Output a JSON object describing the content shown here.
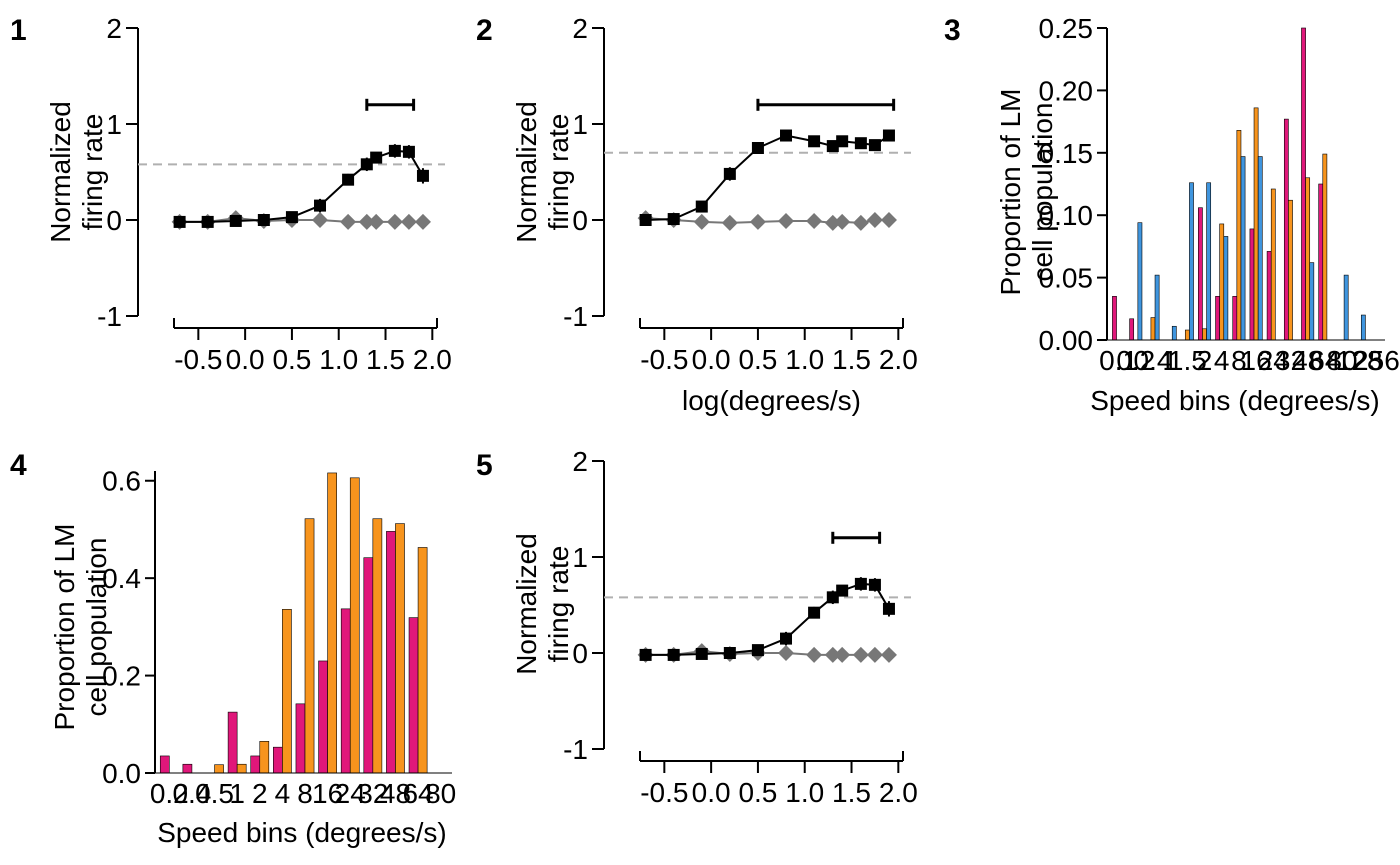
{
  "figure": {
    "background": "#ffffff",
    "colors": {
      "stimulus": "#000000",
      "baseline": "#777777",
      "reference_line": "#b0b0b0",
      "magenta": "#e0177a",
      "orange": "#f7941d",
      "blue": "#3f95de"
    }
  },
  "chart_data": [
    {
      "id": "1",
      "type": "line",
      "panel_label": "1",
      "ylabel": "Normalized firing rate",
      "ylabel_lines": [
        "Normalized",
        "firing rate"
      ],
      "xlabel": "",
      "xlim": [
        -0.76,
        2.05
      ],
      "ylim": [
        -1,
        2
      ],
      "x_ticks": [
        "-0.5",
        "0.0",
        "0.5",
        "1.0",
        "1.5",
        "2.0"
      ],
      "y_ticks": [
        "-1",
        "0",
        "1",
        "2"
      ],
      "grid": false,
      "reference_line_y": 0.58,
      "significance_bar": [
        1.3,
        1.8
      ],
      "series": [
        {
          "marker": "square",
          "color": "#000000",
          "x": [
            -0.7,
            -0.4,
            -0.1,
            0.2,
            0.5,
            0.8,
            1.1,
            1.3,
            1.4,
            1.6,
            1.75,
            1.9
          ],
          "y": [
            -0.02,
            -0.02,
            -0.01,
            0.0,
            0.03,
            0.15,
            0.42,
            0.58,
            0.65,
            0.72,
            0.71,
            0.46
          ],
          "err": [
            0.03,
            0.03,
            0.03,
            0.03,
            0.04,
            0.07,
            0.06,
            0.07,
            0.05,
            0.07,
            0.07,
            0.08
          ]
        },
        {
          "marker": "diamond",
          "color": "#777777",
          "x": [
            -0.7,
            -0.4,
            -0.1,
            0.2,
            0.5,
            0.8,
            1.1,
            1.3,
            1.4,
            1.6,
            1.75,
            1.9
          ],
          "y": [
            -0.02,
            -0.02,
            0.02,
            -0.01,
            0.0,
            0.0,
            -0.02,
            -0.02,
            -0.02,
            -0.02,
            -0.02,
            -0.02
          ],
          "err": [
            0.02,
            0.02,
            0.02,
            0.02,
            0.02,
            0.02,
            0.02,
            0.02,
            0.02,
            0.02,
            0.02,
            0.02
          ]
        }
      ]
    },
    {
      "id": "2",
      "type": "line",
      "panel_label": "2",
      "ylabel": "Normalized firing rate",
      "ylabel_lines": [
        "Normalized",
        "firing rate"
      ],
      "xlabel": "log(degrees/s)",
      "xlim": [
        -0.76,
        2.05
      ],
      "ylim": [
        -1,
        2
      ],
      "x_ticks": [
        "-0.5",
        "0.0",
        "0.5",
        "1.0",
        "1.5",
        "2.0"
      ],
      "y_ticks": [
        "-1",
        "0",
        "1",
        "2"
      ],
      "grid": false,
      "reference_line_y": 0.7,
      "significance_bar": [
        0.5,
        1.95
      ],
      "series": [
        {
          "marker": "square",
          "color": "#000000",
          "x": [
            -0.7,
            -0.4,
            -0.1,
            0.2,
            0.5,
            0.8,
            1.1,
            1.3,
            1.4,
            1.6,
            1.75,
            1.9
          ],
          "y": [
            0.0,
            0.01,
            0.14,
            0.48,
            0.75,
            0.88,
            0.82,
            0.77,
            0.82,
            0.8,
            0.78,
            0.88
          ],
          "err": [
            0.03,
            0.03,
            0.04,
            0.07,
            0.05,
            0.04,
            0.05,
            0.05,
            0.05,
            0.05,
            0.05,
            0.05
          ]
        },
        {
          "marker": "diamond",
          "color": "#777777",
          "x": [
            -0.7,
            -0.4,
            -0.1,
            0.2,
            0.5,
            0.8,
            1.1,
            1.3,
            1.4,
            1.6,
            1.75,
            1.9
          ],
          "y": [
            0.02,
            0.0,
            -0.02,
            -0.03,
            -0.02,
            -0.01,
            -0.01,
            -0.03,
            -0.02,
            -0.03,
            0.0,
            0.0
          ],
          "err": [
            0.02,
            0.02,
            0.02,
            0.02,
            0.02,
            0.02,
            0.02,
            0.02,
            0.02,
            0.02,
            0.02,
            0.02
          ]
        }
      ]
    },
    {
      "id": "3",
      "type": "bar",
      "panel_label": "3",
      "ylabel": "Proportion of LM cell population",
      "ylabel_lines": [
        "Proportion of LM",
        "cell population"
      ],
      "xlabel": "Speed bins (degrees/s)",
      "categories": [
        "0.1",
        "0.2",
        "0.4",
        "1",
        "1.5",
        "2",
        "4",
        "8",
        "16",
        "24",
        "32",
        "48",
        "64",
        "80",
        "128",
        "256"
      ],
      "ylim": [
        0,
        0.25
      ],
      "y_ticks": [
        "0.00",
        "0.05",
        "0.10",
        "0.15",
        "0.20",
        "0.25"
      ],
      "grid": false,
      "series": [
        {
          "color": "#e0177a",
          "values": [
            0.035,
            0.017,
            0.0,
            0.0,
            0.0,
            0.106,
            0.035,
            0.035,
            0.089,
            0.071,
            0.177,
            0.25,
            0.125,
            0.0,
            0.0,
            0.0
          ]
        },
        {
          "color": "#f7941d",
          "values": [
            0.0,
            0.0,
            0.018,
            0.0,
            0.008,
            0.009,
            0.093,
            0.168,
            0.186,
            0.121,
            0.112,
            0.13,
            0.149,
            0.0,
            0.0,
            0.0
          ]
        },
        {
          "color": "#3f95de",
          "values": [
            0.0,
            0.094,
            0.052,
            0.011,
            0.126,
            0.126,
            0.083,
            0.147,
            0.147,
            0.0,
            0.0,
            0.062,
            0.0,
            0.052,
            0.02,
            0.0
          ]
        }
      ]
    },
    {
      "id": "4",
      "type": "bar",
      "panel_label": "4",
      "ylabel": "Proportion of LM cell population",
      "ylabel_lines": [
        "Proportion of LM",
        "cell population"
      ],
      "xlabel": "Speed bins (degrees/s)",
      "categories": [
        "0.2",
        "0.4",
        "0.5",
        "1",
        "2",
        "4",
        "8",
        "16",
        "24",
        "32",
        "48",
        "64",
        "80"
      ],
      "ylim": [
        0,
        0.62
      ],
      "y_ticks": [
        "0.0",
        "0.2",
        "0.4",
        "0.6"
      ],
      "grid": false,
      "series": [
        {
          "color": "#e0177a",
          "values": [
            0.035,
            0.018,
            0.0,
            0.125,
            0.035,
            0.053,
            0.142,
            0.23,
            0.337,
            0.442,
            0.496,
            0.319,
            0.0
          ]
        },
        {
          "color": "#f7941d",
          "values": [
            0.0,
            0.0,
            0.017,
            0.018,
            0.065,
            0.336,
            0.522,
            0.616,
            0.606,
            0.522,
            0.512,
            0.463,
            0.0
          ]
        }
      ]
    },
    {
      "id": "5",
      "type": "line",
      "panel_label": "5",
      "ylabel": "Normalized firing rate",
      "ylabel_lines": [
        "Normalized",
        "firing rate"
      ],
      "xlabel": "",
      "xlim": [
        -0.76,
        2.05
      ],
      "ylim": [
        -1,
        2
      ],
      "x_ticks": [
        "-0.5",
        "0.0",
        "0.5",
        "1.0",
        "1.5",
        "2.0"
      ],
      "y_ticks": [
        "-1",
        "0",
        "1",
        "2"
      ],
      "grid": false,
      "reference_line_y": 0.58,
      "significance_bar": [
        1.3,
        1.8
      ],
      "series": [
        {
          "marker": "square",
          "color": "#000000",
          "x": [
            -0.7,
            -0.4,
            -0.1,
            0.2,
            0.5,
            0.8,
            1.1,
            1.3,
            1.4,
            1.6,
            1.75,
            1.9
          ],
          "y": [
            -0.02,
            -0.02,
            -0.01,
            0.0,
            0.03,
            0.15,
            0.42,
            0.58,
            0.65,
            0.72,
            0.71,
            0.46
          ],
          "err": [
            0.03,
            0.03,
            0.03,
            0.03,
            0.04,
            0.07,
            0.06,
            0.07,
            0.05,
            0.07,
            0.07,
            0.08
          ]
        },
        {
          "marker": "diamond",
          "color": "#777777",
          "x": [
            -0.7,
            -0.4,
            -0.1,
            0.2,
            0.5,
            0.8,
            1.1,
            1.3,
            1.4,
            1.6,
            1.75,
            1.9
          ],
          "y": [
            -0.02,
            -0.02,
            0.02,
            -0.01,
            0.0,
            0.0,
            -0.02,
            -0.02,
            -0.02,
            -0.02,
            -0.02,
            -0.02
          ],
          "err": [
            0.02,
            0.02,
            0.02,
            0.02,
            0.02,
            0.02,
            0.02,
            0.02,
            0.02,
            0.02,
            0.02,
            0.02
          ]
        }
      ]
    }
  ]
}
